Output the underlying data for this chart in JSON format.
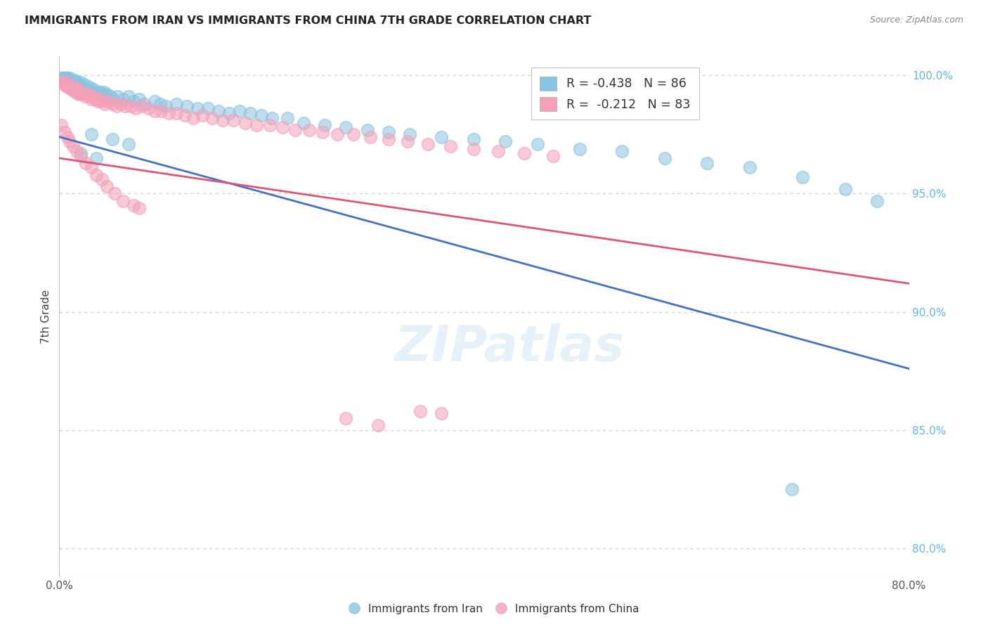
{
  "title": "IMMIGRANTS FROM IRAN VS IMMIGRANTS FROM CHINA 7TH GRADE CORRELATION CHART",
  "source": "Source: ZipAtlas.com",
  "ylabel_label": "7th Grade",
  "x_min": 0.0,
  "x_max": 0.8,
  "y_min": 0.788,
  "y_max": 1.008,
  "x_tick_positions": [
    0.0,
    0.1,
    0.2,
    0.3,
    0.4,
    0.5,
    0.6,
    0.7,
    0.8
  ],
  "x_tick_labels": [
    "0.0%",
    "",
    "",
    "",
    "",
    "",
    "",
    "",
    "80.0%"
  ],
  "y_tick_positions": [
    0.8,
    0.85,
    0.9,
    0.95,
    1.0
  ],
  "y_tick_labels": [
    "80.0%",
    "85.0%",
    "90.0%",
    "95.0%",
    "100.0%"
  ],
  "blue_R": -0.438,
  "blue_N": 86,
  "pink_R": -0.212,
  "pink_N": 83,
  "blue_color": "#89c4e1",
  "pink_color": "#f4a0b8",
  "blue_line_color": "#4472c4",
  "pink_line_color": "#e05575",
  "blue_line": [
    [
      0.0,
      0.974
    ],
    [
      0.8,
      0.876
    ]
  ],
  "pink_line": [
    [
      0.0,
      0.965
    ],
    [
      0.8,
      0.912
    ]
  ],
  "blue_scatter": [
    [
      0.002,
      0.999
    ],
    [
      0.003,
      0.999
    ],
    [
      0.004,
      0.999
    ],
    [
      0.005,
      0.998
    ],
    [
      0.005,
      0.999
    ],
    [
      0.006,
      0.998
    ],
    [
      0.007,
      0.999
    ],
    [
      0.007,
      0.998
    ],
    [
      0.008,
      0.999
    ],
    [
      0.008,
      0.998
    ],
    [
      0.009,
      0.997
    ],
    [
      0.009,
      0.998
    ],
    [
      0.01,
      0.999
    ],
    [
      0.01,
      0.998
    ],
    [
      0.011,
      0.997
    ],
    [
      0.012,
      0.998
    ],
    [
      0.013,
      0.997
    ],
    [
      0.013,
      0.996
    ],
    [
      0.014,
      0.998
    ],
    [
      0.015,
      0.997
    ],
    [
      0.016,
      0.996
    ],
    [
      0.017,
      0.997
    ],
    [
      0.018,
      0.996
    ],
    [
      0.019,
      0.995
    ],
    [
      0.02,
      0.997
    ],
    [
      0.021,
      0.996
    ],
    [
      0.022,
      0.995
    ],
    [
      0.023,
      0.994
    ],
    [
      0.025,
      0.996
    ],
    [
      0.026,
      0.994
    ],
    [
      0.028,
      0.995
    ],
    [
      0.03,
      0.993
    ],
    [
      0.032,
      0.994
    ],
    [
      0.034,
      0.992
    ],
    [
      0.036,
      0.993
    ],
    [
      0.038,
      0.993
    ],
    [
      0.04,
      0.992
    ],
    [
      0.042,
      0.993
    ],
    [
      0.045,
      0.992
    ],
    [
      0.048,
      0.991
    ],
    [
      0.05,
      0.99
    ],
    [
      0.055,
      0.991
    ],
    [
      0.06,
      0.99
    ],
    [
      0.065,
      0.991
    ],
    [
      0.07,
      0.989
    ],
    [
      0.075,
      0.99
    ],
    [
      0.08,
      0.988
    ],
    [
      0.09,
      0.989
    ],
    [
      0.095,
      0.988
    ],
    [
      0.1,
      0.987
    ],
    [
      0.11,
      0.988
    ],
    [
      0.12,
      0.987
    ],
    [
      0.13,
      0.986
    ],
    [
      0.14,
      0.986
    ],
    [
      0.15,
      0.985
    ],
    [
      0.16,
      0.984
    ],
    [
      0.17,
      0.985
    ],
    [
      0.18,
      0.984
    ],
    [
      0.19,
      0.983
    ],
    [
      0.2,
      0.982
    ],
    [
      0.215,
      0.982
    ],
    [
      0.23,
      0.98
    ],
    [
      0.25,
      0.979
    ],
    [
      0.27,
      0.978
    ],
    [
      0.29,
      0.977
    ],
    [
      0.31,
      0.976
    ],
    [
      0.33,
      0.975
    ],
    [
      0.36,
      0.974
    ],
    [
      0.39,
      0.973
    ],
    [
      0.42,
      0.972
    ],
    [
      0.45,
      0.971
    ],
    [
      0.49,
      0.969
    ],
    [
      0.53,
      0.968
    ],
    [
      0.57,
      0.965
    ],
    [
      0.61,
      0.963
    ],
    [
      0.65,
      0.961
    ],
    [
      0.7,
      0.957
    ],
    [
      0.74,
      0.952
    ],
    [
      0.77,
      0.947
    ],
    [
      0.03,
      0.975
    ],
    [
      0.05,
      0.973
    ],
    [
      0.065,
      0.971
    ],
    [
      0.02,
      0.967
    ],
    [
      0.035,
      0.965
    ],
    [
      0.69,
      0.825
    ]
  ],
  "pink_scatter": [
    [
      0.003,
      0.997
    ],
    [
      0.004,
      0.997
    ],
    [
      0.005,
      0.996
    ],
    [
      0.006,
      0.997
    ],
    [
      0.007,
      0.996
    ],
    [
      0.008,
      0.995
    ],
    [
      0.009,
      0.996
    ],
    [
      0.01,
      0.995
    ],
    [
      0.011,
      0.994
    ],
    [
      0.012,
      0.995
    ],
    [
      0.013,
      0.994
    ],
    [
      0.014,
      0.995
    ],
    [
      0.015,
      0.993
    ],
    [
      0.016,
      0.994
    ],
    [
      0.017,
      0.993
    ],
    [
      0.018,
      0.992
    ],
    [
      0.019,
      0.993
    ],
    [
      0.02,
      0.992
    ],
    [
      0.022,
      0.993
    ],
    [
      0.024,
      0.991
    ],
    [
      0.026,
      0.992
    ],
    [
      0.028,
      0.991
    ],
    [
      0.03,
      0.99
    ],
    [
      0.032,
      0.991
    ],
    [
      0.034,
      0.99
    ],
    [
      0.036,
      0.989
    ],
    [
      0.038,
      0.99
    ],
    [
      0.04,
      0.989
    ],
    [
      0.043,
      0.988
    ],
    [
      0.046,
      0.989
    ],
    [
      0.05,
      0.988
    ],
    [
      0.054,
      0.987
    ],
    [
      0.058,
      0.988
    ],
    [
      0.062,
      0.987
    ],
    [
      0.067,
      0.987
    ],
    [
      0.072,
      0.986
    ],
    [
      0.078,
      0.987
    ],
    [
      0.084,
      0.986
    ],
    [
      0.09,
      0.985
    ],
    [
      0.096,
      0.985
    ],
    [
      0.103,
      0.984
    ],
    [
      0.11,
      0.984
    ],
    [
      0.118,
      0.983
    ],
    [
      0.126,
      0.982
    ],
    [
      0.135,
      0.983
    ],
    [
      0.144,
      0.982
    ],
    [
      0.154,
      0.981
    ],
    [
      0.164,
      0.981
    ],
    [
      0.175,
      0.98
    ],
    [
      0.186,
      0.979
    ],
    [
      0.198,
      0.979
    ],
    [
      0.21,
      0.978
    ],
    [
      0.222,
      0.977
    ],
    [
      0.235,
      0.977
    ],
    [
      0.248,
      0.976
    ],
    [
      0.262,
      0.975
    ],
    [
      0.277,
      0.975
    ],
    [
      0.293,
      0.974
    ],
    [
      0.31,
      0.973
    ],
    [
      0.328,
      0.972
    ],
    [
      0.347,
      0.971
    ],
    [
      0.368,
      0.97
    ],
    [
      0.39,
      0.969
    ],
    [
      0.413,
      0.968
    ],
    [
      0.438,
      0.967
    ],
    [
      0.465,
      0.966
    ],
    [
      0.002,
      0.979
    ],
    [
      0.005,
      0.976
    ],
    [
      0.008,
      0.974
    ],
    [
      0.01,
      0.972
    ],
    [
      0.013,
      0.97
    ],
    [
      0.016,
      0.968
    ],
    [
      0.02,
      0.966
    ],
    [
      0.025,
      0.963
    ],
    [
      0.03,
      0.961
    ],
    [
      0.035,
      0.958
    ],
    [
      0.04,
      0.956
    ],
    [
      0.045,
      0.953
    ],
    [
      0.052,
      0.95
    ],
    [
      0.06,
      0.947
    ],
    [
      0.07,
      0.945
    ],
    [
      0.075,
      0.944
    ],
    [
      0.27,
      0.855
    ],
    [
      0.3,
      0.852
    ],
    [
      0.34,
      0.858
    ],
    [
      0.36,
      0.857
    ]
  ],
  "watermark_text": "ZIPatlas",
  "background_color": "#ffffff",
  "grid_color": "#cccccc"
}
